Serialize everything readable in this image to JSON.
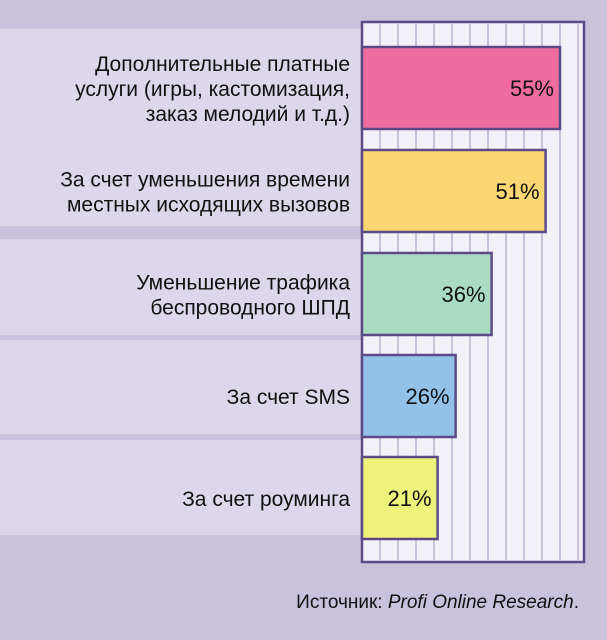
{
  "chart_data": {
    "type": "bar",
    "orientation": "horizontal",
    "categories": [
      [
        "Дополнительные платные",
        "услуги (игры, кастомизация,",
        "заказ мелодий и т.д.)"
      ],
      [
        "За счет уменьшения времени",
        "местных исходящих вызовов"
      ],
      [
        "Уменьшение трафика",
        "беспроводного ШПД"
      ],
      [
        "За счет SMS"
      ],
      [
        "За счет роуминга"
      ]
    ],
    "values": [
      55,
      51,
      36,
      26,
      21
    ],
    "value_labels": [
      "55%",
      "51%",
      "36%",
      "26%",
      "21%"
    ],
    "xlim": [
      0,
      60
    ],
    "grid": true,
    "colors": {
      "bars": [
        "#f06c9e",
        "#fbd774",
        "#a9dcc1",
        "#93c1e8",
        "#eef27b"
      ],
      "plot_background": "#f3f1f8",
      "band": "#dcd7ea",
      "page_background": "#c8c2dc",
      "bar_border": "#5b4a86"
    }
  },
  "source": {
    "prefix": "Источник: ",
    "name": "Profi Online Research",
    "suffix": "."
  }
}
